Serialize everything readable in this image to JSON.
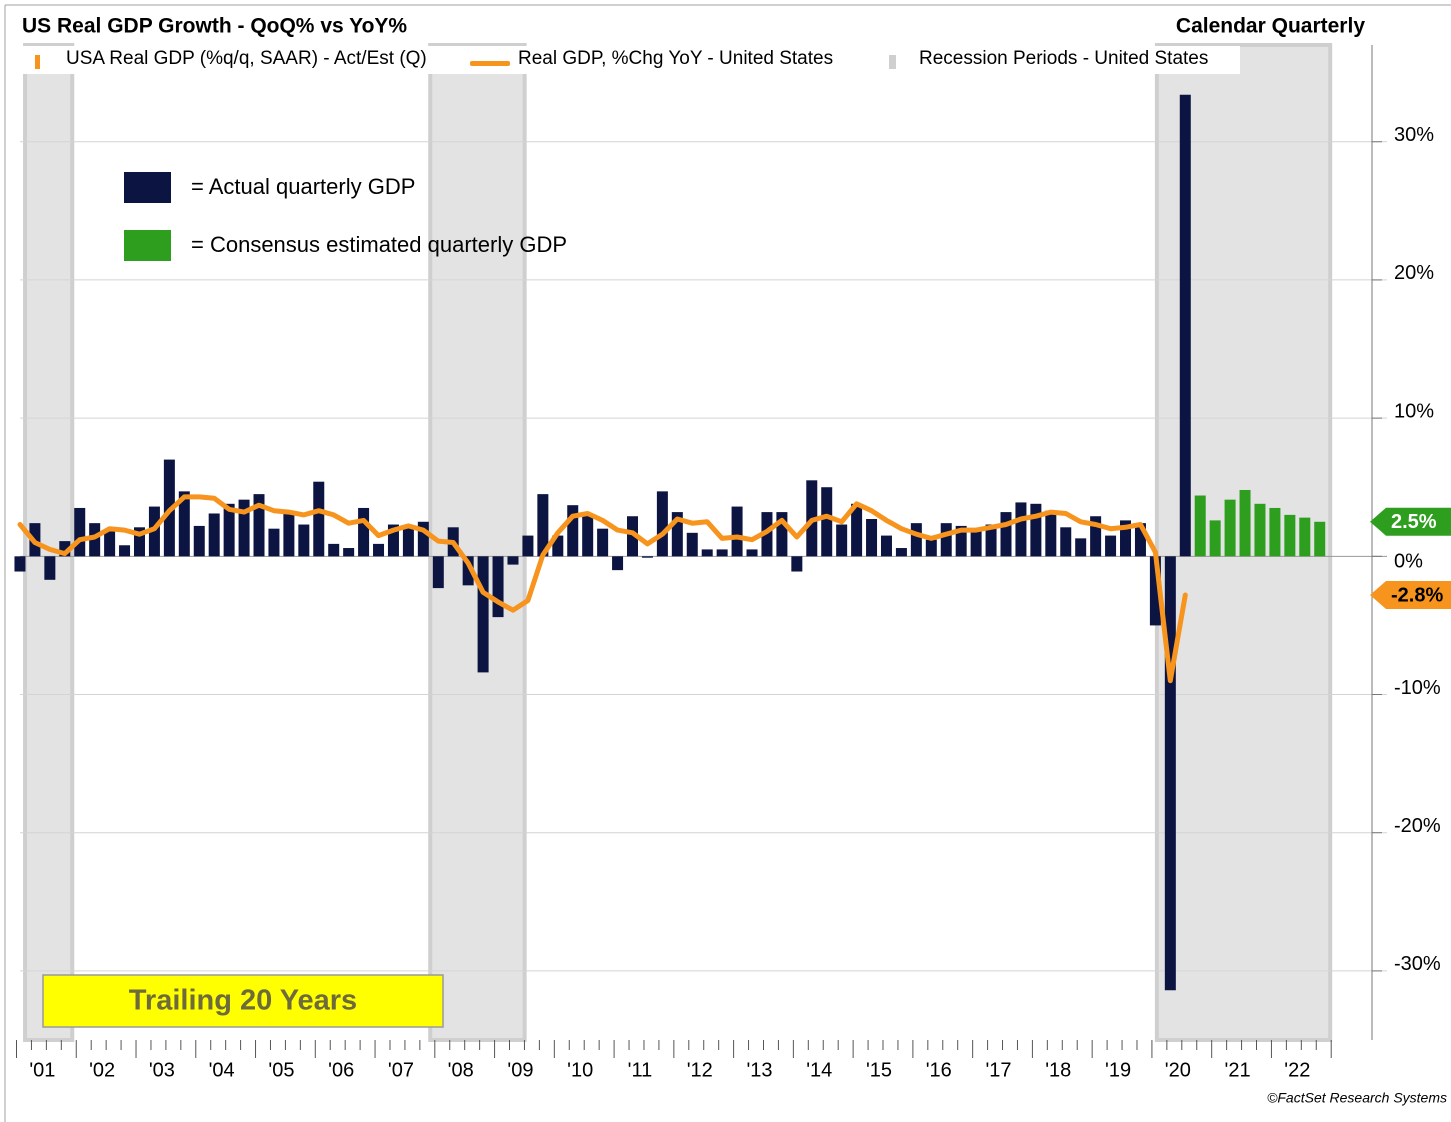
{
  "chart_data": {
    "type": "bar",
    "title": "US Real GDP Growth - QoQ% vs YoY%",
    "subtitle": "Calendar Quarterly",
    "annotation": "Trailing 20 Years",
    "source": "©FactSet Research Systems",
    "bar_legend": {
      "label": "USA Real GDP (%q/q, SAAR) - Act/Est (Q)",
      "color": "#f7941d"
    },
    "recession_legend": {
      "label": "Recession Periods - United States",
      "color": "#cfcfcf"
    },
    "recessions": [
      [
        2001.21,
        2002.0
      ],
      [
        2007.99,
        2009.57
      ],
      [
        2020.15,
        2023.05
      ]
    ],
    "xlim": [
      2001,
      2023
    ],
    "xticks": [
      {
        "value": 2001.5,
        "label": "'01"
      },
      {
        "value": 2002.5,
        "label": "'02"
      },
      {
        "value": 2003.5,
        "label": "'03"
      },
      {
        "value": 2004.5,
        "label": "'04"
      },
      {
        "value": 2005.5,
        "label": "'05"
      },
      {
        "value": 2006.5,
        "label": "'06"
      },
      {
        "value": 2007.5,
        "label": "'07"
      },
      {
        "value": 2008.5,
        "label": "'08"
      },
      {
        "value": 2009.5,
        "label": "'09"
      },
      {
        "value": 2010.5,
        "label": "'10"
      },
      {
        "value": 2011.5,
        "label": "'11"
      },
      {
        "value": 2012.5,
        "label": "'12"
      },
      {
        "value": 2013.5,
        "label": "'13"
      },
      {
        "value": 2014.5,
        "label": "'14"
      },
      {
        "value": 2015.5,
        "label": "'15"
      },
      {
        "value": 2016.5,
        "label": "'16"
      },
      {
        "value": 2017.5,
        "label": "'17"
      },
      {
        "value": 2018.5,
        "label": "'18"
      },
      {
        "value": 2019.5,
        "label": "'19"
      },
      {
        "value": 2020.5,
        "label": "'20"
      },
      {
        "value": 2021.5,
        "label": "'21"
      },
      {
        "value": 2022.5,
        "label": "'22"
      }
    ],
    "ylim": [
      -35,
      37
    ],
    "yticks": [
      {
        "value": -30,
        "label": "-30%"
      },
      {
        "value": -20,
        "label": "-20%"
      },
      {
        "value": -10,
        "label": "-10%"
      },
      {
        "value": 0,
        "label": "0%"
      },
      {
        "value": 10,
        "label": "10%"
      },
      {
        "value": 20,
        "label": "20%"
      },
      {
        "value": 30,
        "label": "30%"
      }
    ],
    "grid": true,
    "x": [
      2001.125,
      2001.375,
      2001.625,
      2001.875,
      2002.125,
      2002.375,
      2002.625,
      2002.875,
      2003.125,
      2003.375,
      2003.625,
      2003.875,
      2004.125,
      2004.375,
      2004.625,
      2004.875,
      2005.125,
      2005.375,
      2005.625,
      2005.875,
      2006.125,
      2006.375,
      2006.625,
      2006.875,
      2007.125,
      2007.375,
      2007.625,
      2007.875,
      2008.125,
      2008.375,
      2008.625,
      2008.875,
      2009.125,
      2009.375,
      2009.625,
      2009.875,
      2010.125,
      2010.375,
      2010.625,
      2010.875,
      2011.125,
      2011.375,
      2011.625,
      2011.875,
      2012.125,
      2012.375,
      2012.625,
      2012.875,
      2013.125,
      2013.375,
      2013.625,
      2013.875,
      2014.125,
      2014.375,
      2014.625,
      2014.875,
      2015.125,
      2015.375,
      2015.625,
      2015.875,
      2016.125,
      2016.375,
      2016.625,
      2016.875,
      2017.125,
      2017.375,
      2017.625,
      2017.875,
      2018.125,
      2018.375,
      2018.625,
      2018.875,
      2019.125,
      2019.375,
      2019.625,
      2019.875,
      2020.125,
      2020.375,
      2020.625,
      2020.875,
      2021.125,
      2021.375,
      2021.625,
      2021.875,
      2022.125,
      2022.375,
      2022.625,
      2022.875
    ],
    "series": [
      {
        "name": "= Actual quarterly GDP",
        "kind": "bar",
        "color": "#0c1442",
        "values": [
          -1.1,
          2.4,
          -1.7,
          1.1,
          3.5,
          2.4,
          1.8,
          0.8,
          2.1,
          3.6,
          7.0,
          4.7,
          2.2,
          3.1,
          3.8,
          4.1,
          4.5,
          2.0,
          3.2,
          2.3,
          5.4,
          0.9,
          0.6,
          3.5,
          0.9,
          2.3,
          2.2,
          2.5,
          -2.3,
          2.1,
          -2.1,
          -8.4,
          -4.4,
          -0.6,
          1.5,
          4.5,
          1.5,
          3.7,
          3.0,
          2.0,
          -1.0,
          2.9,
          -0.1,
          4.7,
          3.2,
          1.7,
          0.5,
          0.5,
          3.6,
          0.5,
          3.2,
          3.2,
          -1.1,
          5.5,
          5.0,
          2.3,
          3.8,
          2.7,
          1.5,
          0.6,
          2.4,
          1.2,
          2.4,
          2.2,
          2.0,
          2.3,
          3.2,
          3.9,
          3.8,
          3.3,
          2.1,
          1.3,
          2.9,
          1.5,
          2.6,
          2.4,
          -5.0,
          -31.4,
          33.4,
          null,
          null,
          null,
          null,
          null,
          null,
          null,
          null,
          null
        ]
      },
      {
        "name": "= Consensus estimated quarterly GDP",
        "kind": "bar",
        "color": "#2e9e1e",
        "values": [
          null,
          null,
          null,
          null,
          null,
          null,
          null,
          null,
          null,
          null,
          null,
          null,
          null,
          null,
          null,
          null,
          null,
          null,
          null,
          null,
          null,
          null,
          null,
          null,
          null,
          null,
          null,
          null,
          null,
          null,
          null,
          null,
          null,
          null,
          null,
          null,
          null,
          null,
          null,
          null,
          null,
          null,
          null,
          null,
          null,
          null,
          null,
          null,
          null,
          null,
          null,
          null,
          null,
          null,
          null,
          null,
          null,
          null,
          null,
          null,
          null,
          null,
          null,
          null,
          null,
          null,
          null,
          null,
          null,
          null,
          null,
          null,
          null,
          null,
          null,
          null,
          null,
          null,
          null,
          4.4,
          2.6,
          4.1,
          4.8,
          3.8,
          3.5,
          3.0,
          2.8,
          2.5
        ]
      },
      {
        "name": "Real GDP, %Chg YoY - United States",
        "kind": "line",
        "color": "#f7941d",
        "values": [
          2.3,
          1.0,
          0.5,
          0.2,
          1.2,
          1.4,
          2.0,
          1.9,
          1.6,
          2.0,
          3.3,
          4.3,
          4.3,
          4.2,
          3.4,
          3.2,
          3.7,
          3.3,
          3.2,
          3.0,
          3.3,
          3.0,
          2.4,
          2.6,
          1.5,
          1.9,
          2.2,
          1.9,
          1.1,
          1.0,
          -0.5,
          -2.6,
          -3.3,
          -3.9,
          -3.2,
          0.1,
          1.7,
          2.9,
          3.1,
          2.6,
          1.9,
          1.7,
          0.9,
          1.6,
          2.7,
          2.4,
          2.5,
          1.3,
          1.4,
          1.2,
          1.8,
          2.6,
          1.4,
          2.6,
          2.9,
          2.5,
          3.8,
          3.3,
          2.6,
          2.0,
          1.6,
          1.3,
          1.6,
          1.9,
          1.9,
          2.1,
          2.3,
          2.7,
          2.9,
          3.2,
          3.1,
          2.5,
          2.3,
          2.0,
          2.1,
          2.3,
          0.3,
          -9.0,
          -2.8,
          null,
          null,
          null,
          null,
          null,
          null,
          null,
          null,
          null
        ]
      }
    ],
    "end_labels": [
      {
        "value": 2.5,
        "label": "2.5%",
        "color": "#2e9e1e",
        "text_color": "#ffffff"
      },
      {
        "value": -2.8,
        "label": "-2.8%",
        "color": "#f7941d",
        "text_color": "#000000"
      }
    ]
  }
}
